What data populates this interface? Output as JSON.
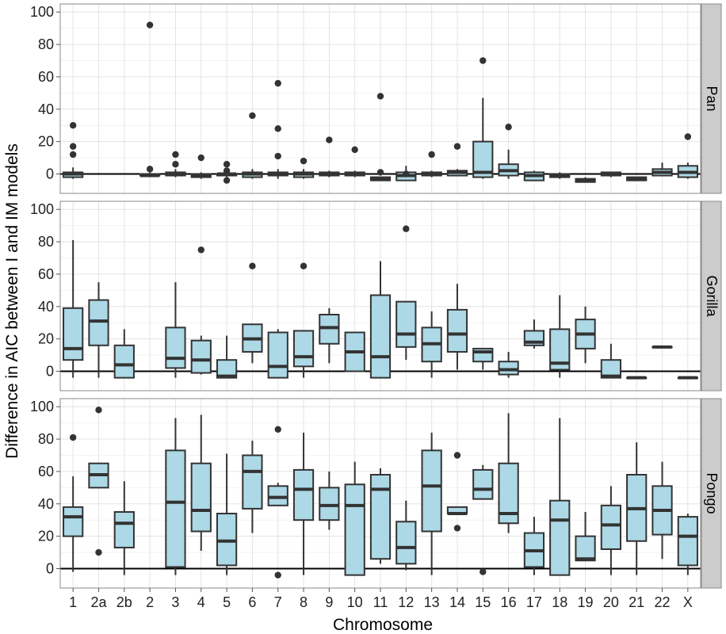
{
  "chart_data": {
    "type": "box",
    "xlabel": "Chromosome",
    "ylabel": "Difference in AIC between I and IM models",
    "ylim": [
      -12,
      105
    ],
    "yticks": [
      0,
      20,
      40,
      60,
      80,
      100
    ],
    "grid": true,
    "reference_line_y": 0,
    "categories": [
      "1",
      "2a",
      "2b",
      "2",
      "3",
      "4",
      "5",
      "6",
      "7",
      "8",
      "9",
      "10",
      "11",
      "12",
      "13",
      "14",
      "15",
      "16",
      "17",
      "18",
      "19",
      "20",
      "21",
      "22",
      "X"
    ],
    "panels": [
      {
        "label": "Pan",
        "boxes": [
          {
            "cat": "1",
            "lo": -3,
            "q1": -2,
            "med": 0,
            "q3": 1,
            "hi": 4,
            "out": [
              30,
              17,
              12
            ]
          },
          {
            "cat": "2",
            "lo": -2,
            "q1": -1,
            "med": -1,
            "q3": 0,
            "hi": 1,
            "out": [
              92,
              3
            ]
          },
          {
            "cat": "3",
            "lo": -2,
            "q1": -1,
            "med": 0,
            "q3": 1,
            "hi": 3,
            "out": [
              12,
              6
            ]
          },
          {
            "cat": "4",
            "lo": -3,
            "q1": -2,
            "med": -1,
            "q3": 0,
            "hi": 1,
            "out": [
              10
            ]
          },
          {
            "cat": "5",
            "lo": -2,
            "q1": -1,
            "med": 0,
            "q3": 0,
            "hi": 1,
            "out": [
              6,
              2,
              -4
            ]
          },
          {
            "cat": "6",
            "lo": -3,
            "q1": -2,
            "med": 0,
            "q3": 1,
            "hi": 3,
            "out": [
              36
            ]
          },
          {
            "cat": "7",
            "lo": -3,
            "q1": -1,
            "med": 0,
            "q3": 1,
            "hi": 3,
            "out": [
              56,
              28,
              11
            ]
          },
          {
            "cat": "8",
            "lo": -3,
            "q1": -2,
            "med": 0,
            "q3": 1,
            "hi": 3,
            "out": [
              8
            ]
          },
          {
            "cat": "9",
            "lo": -2,
            "q1": -1,
            "med": 0,
            "q3": 1,
            "hi": 2,
            "out": [
              21
            ]
          },
          {
            "cat": "10",
            "lo": -2,
            "q1": -1,
            "med": 0,
            "q3": 1,
            "hi": 2,
            "out": [
              15
            ]
          },
          {
            "cat": "11",
            "lo": -4,
            "q1": -4,
            "med": -3,
            "q3": -2,
            "hi": -2,
            "out": [
              48,
              1
            ]
          },
          {
            "cat": "12",
            "lo": -4,
            "q1": -4,
            "med": -1,
            "q3": 1,
            "hi": 5,
            "out": [
              0
            ]
          },
          {
            "cat": "13",
            "lo": -2,
            "q1": -1,
            "med": 0,
            "q3": 1,
            "hi": 2,
            "out": [
              12
            ]
          },
          {
            "cat": "14",
            "lo": -1,
            "q1": -1,
            "med": 1,
            "q3": 2,
            "hi": 3,
            "out": [
              17
            ]
          },
          {
            "cat": "15",
            "lo": -3,
            "q1": -2,
            "med": 1,
            "q3": 20,
            "hi": 47,
            "out": [
              70
            ]
          },
          {
            "cat": "16",
            "lo": -3,
            "q1": -1,
            "med": 2,
            "q3": 6,
            "hi": 15,
            "out": [
              29
            ]
          },
          {
            "cat": "17",
            "lo": -4,
            "q1": -4,
            "med": -1,
            "q3": 1,
            "hi": 2,
            "out": []
          },
          {
            "cat": "18",
            "lo": -3,
            "q1": -2,
            "med": -1,
            "q3": 0,
            "hi": 1,
            "out": []
          },
          {
            "cat": "19",
            "lo": -5,
            "q1": -5,
            "med": -4,
            "q3": -3,
            "hi": -2,
            "out": []
          },
          {
            "cat": "20",
            "lo": -2,
            "q1": -1,
            "med": 0,
            "q3": 1,
            "hi": 1,
            "out": []
          },
          {
            "cat": "21",
            "lo": -4,
            "q1": -4,
            "med": -3,
            "q3": -2,
            "hi": -2,
            "out": []
          },
          {
            "cat": "22",
            "lo": -1,
            "q1": -1,
            "med": 1,
            "q3": 3,
            "hi": 7,
            "out": []
          },
          {
            "cat": "X",
            "lo": -3,
            "q1": -2,
            "med": 1,
            "q3": 5,
            "hi": 7,
            "out": [
              23
            ]
          }
        ]
      },
      {
        "label": "Gorilla",
        "boxes": [
          {
            "cat": "1",
            "lo": -4,
            "q1": 7,
            "med": 14,
            "q3": 39,
            "hi": 81,
            "out": []
          },
          {
            "cat": "2a",
            "lo": -4,
            "q1": 16,
            "med": 31,
            "q3": 44,
            "hi": 55,
            "out": []
          },
          {
            "cat": "2b",
            "lo": -4,
            "q1": -4,
            "med": 4,
            "q3": 16,
            "hi": 26,
            "out": []
          },
          {
            "cat": "3",
            "lo": -4,
            "q1": 2,
            "med": 8,
            "q3": 27,
            "hi": 55,
            "out": []
          },
          {
            "cat": "4",
            "lo": -2,
            "q1": -1,
            "med": 7,
            "q3": 19,
            "hi": 22,
            "out": [
              75
            ]
          },
          {
            "cat": "5",
            "lo": -4,
            "q1": -4,
            "med": -3,
            "q3": 7,
            "hi": 22,
            "out": []
          },
          {
            "cat": "6",
            "lo": 5,
            "q1": 12,
            "med": 20,
            "q3": 29,
            "hi": 29,
            "out": [
              65
            ]
          },
          {
            "cat": "7",
            "lo": -4,
            "q1": -4,
            "med": 3,
            "q3": 24,
            "hi": 26,
            "out": []
          },
          {
            "cat": "8",
            "lo": -4,
            "q1": 3,
            "med": 9,
            "q3": 25,
            "hi": 25,
            "out": [
              65
            ]
          },
          {
            "cat": "9",
            "lo": 5,
            "q1": 17,
            "med": 27,
            "q3": 35,
            "hi": 39,
            "out": []
          },
          {
            "cat": "10",
            "lo": 0,
            "q1": 0,
            "med": 12,
            "q3": 24,
            "hi": 24,
            "out": []
          },
          {
            "cat": "11",
            "lo": -4,
            "q1": -4,
            "med": 9,
            "q3": 47,
            "hi": 68,
            "out": []
          },
          {
            "cat": "12",
            "lo": 7,
            "q1": 15,
            "med": 23,
            "q3": 43,
            "hi": 43,
            "out": [
              88
            ]
          },
          {
            "cat": "13",
            "lo": -4,
            "q1": 6,
            "med": 17,
            "q3": 27,
            "hi": 37,
            "out": []
          },
          {
            "cat": "14",
            "lo": 1,
            "q1": 12,
            "med": 23,
            "q3": 38,
            "hi": 54,
            "out": []
          },
          {
            "cat": "15",
            "lo": 1,
            "q1": 6,
            "med": 12,
            "q3": 14,
            "hi": 14,
            "out": []
          },
          {
            "cat": "16",
            "lo": -4,
            "q1": -2,
            "med": 1,
            "q3": 6,
            "hi": 12,
            "out": []
          },
          {
            "cat": "17",
            "lo": 14,
            "q1": 16,
            "med": 18,
            "q3": 25,
            "hi": 32,
            "out": []
          },
          {
            "cat": "18",
            "lo": -4,
            "q1": 1,
            "med": 5,
            "q3": 26,
            "hi": 47,
            "out": []
          },
          {
            "cat": "19",
            "lo": 5,
            "q1": 14,
            "med": 23,
            "q3": 32,
            "hi": 40,
            "out": []
          },
          {
            "cat": "20",
            "lo": -4,
            "q1": -4,
            "med": -3,
            "q3": 7,
            "hi": 17,
            "out": []
          },
          {
            "cat": "21",
            "lo": -4,
            "q1": -4,
            "med": -4,
            "q3": -4,
            "hi": -4,
            "out": []
          },
          {
            "cat": "22",
            "lo": 15,
            "q1": 15,
            "med": 15,
            "q3": 15,
            "hi": 15,
            "out": []
          },
          {
            "cat": "X",
            "lo": -4,
            "q1": -4,
            "med": -4,
            "q3": -4,
            "hi": -4,
            "out": []
          }
        ]
      },
      {
        "label": "Pongo",
        "boxes": [
          {
            "cat": "1",
            "lo": -2,
            "q1": 20,
            "med": 32,
            "q3": 38,
            "hi": 57,
            "out": [
              81
            ]
          },
          {
            "cat": "2a",
            "lo": 50,
            "q1": 50,
            "med": 58,
            "q3": 65,
            "hi": 65,
            "out": [
              98,
              10
            ]
          },
          {
            "cat": "2b",
            "lo": -4,
            "q1": 13,
            "med": 28,
            "q3": 35,
            "hi": 54,
            "out": []
          },
          {
            "cat": "3",
            "lo": -4,
            "q1": 1,
            "med": 41,
            "q3": 73,
            "hi": 93,
            "out": []
          },
          {
            "cat": "4",
            "lo": 11,
            "q1": 23,
            "med": 36,
            "q3": 65,
            "hi": 95,
            "out": []
          },
          {
            "cat": "5",
            "lo": -4,
            "q1": 2,
            "med": 17,
            "q3": 34,
            "hi": 71,
            "out": []
          },
          {
            "cat": "6",
            "lo": 22,
            "q1": 37,
            "med": 60,
            "q3": 70,
            "hi": 79,
            "out": []
          },
          {
            "cat": "7",
            "lo": 39,
            "q1": 39,
            "med": 44,
            "q3": 51,
            "hi": 53,
            "out": [
              86,
              -4
            ]
          },
          {
            "cat": "8",
            "lo": -4,
            "q1": 30,
            "med": 49,
            "q3": 61,
            "hi": 84,
            "out": []
          },
          {
            "cat": "9",
            "lo": 24,
            "q1": 30,
            "med": 39,
            "q3": 50,
            "hi": 60,
            "out": []
          },
          {
            "cat": "10",
            "lo": -4,
            "q1": -4,
            "med": 39,
            "q3": 52,
            "hi": 66,
            "out": []
          },
          {
            "cat": "11",
            "lo": 3,
            "q1": 6,
            "med": 49,
            "q3": 58,
            "hi": 62,
            "out": []
          },
          {
            "cat": "12",
            "lo": -1,
            "q1": 3,
            "med": 13,
            "q3": 29,
            "hi": 42,
            "out": []
          },
          {
            "cat": "13",
            "lo": -4,
            "q1": 23,
            "med": 51,
            "q3": 73,
            "hi": 84,
            "out": []
          },
          {
            "cat": "14",
            "lo": 34,
            "q1": 34,
            "med": 34,
            "q3": 38,
            "hi": 38,
            "out": [
              70,
              25
            ]
          },
          {
            "cat": "15",
            "lo": 43,
            "q1": 43,
            "med": 49,
            "q3": 61,
            "hi": 64,
            "out": [
              -2
            ]
          },
          {
            "cat": "16",
            "lo": 22,
            "q1": 28,
            "med": 34,
            "q3": 65,
            "hi": 96,
            "out": []
          },
          {
            "cat": "17",
            "lo": -4,
            "q1": 1,
            "med": 11,
            "q3": 22,
            "hi": 32,
            "out": []
          },
          {
            "cat": "18",
            "lo": -4,
            "q1": -4,
            "med": 30,
            "q3": 42,
            "hi": 93,
            "out": []
          },
          {
            "cat": "19",
            "lo": 5,
            "q1": 5,
            "med": 6,
            "q3": 20,
            "hi": 35,
            "out": []
          },
          {
            "cat": "20",
            "lo": -4,
            "q1": 12,
            "med": 27,
            "q3": 39,
            "hi": 51,
            "out": []
          },
          {
            "cat": "21",
            "lo": -4,
            "q1": 17,
            "med": 37,
            "q3": 58,
            "hi": 78,
            "out": []
          },
          {
            "cat": "22",
            "lo": 6,
            "q1": 21,
            "med": 36,
            "q3": 51,
            "hi": 66,
            "out": []
          },
          {
            "cat": "X",
            "lo": -4,
            "q1": 2,
            "med": 20,
            "q3": 32,
            "hi": 34,
            "out": []
          }
        ]
      }
    ]
  },
  "colors": {
    "box_fill": "#add8e6",
    "box_stroke": "#333333",
    "outlier": "#333333",
    "strip_fill": "#cccccc",
    "grid_major": "#e3e3e3",
    "grid_minor": "#f2f2f2",
    "zero_line": "#000000"
  }
}
